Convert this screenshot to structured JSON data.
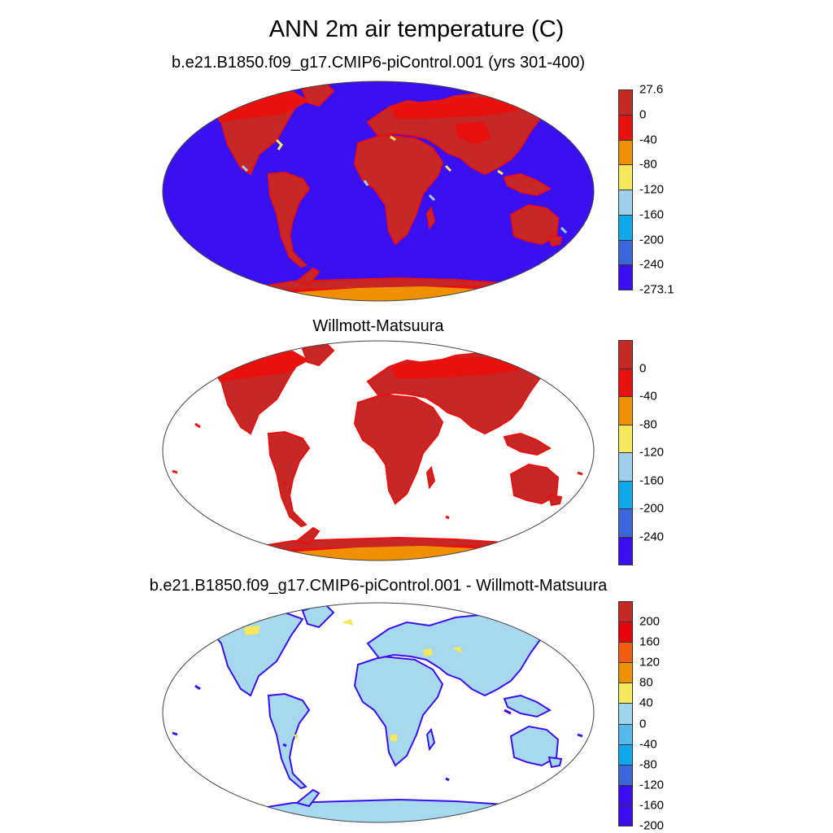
{
  "title": "ANN 2m air temperature (C)",
  "panels": [
    {
      "title": "b.e21.B1850.f09_g17.CMIP6-piControl.001 (yrs 301-400)",
      "colorbar": {
        "colors": [
          "#c62828",
          "#e8110e",
          "#f09000",
          "#f7e85a",
          "#9fcfea",
          "#10a8ec",
          "#3a66df",
          "#3b10f0"
        ],
        "labels": [
          "27.6",
          "0",
          "-40",
          "-80",
          "-120",
          "-160",
          "-200",
          "-240",
          "-273.1"
        ]
      }
    },
    {
      "title": "Willmott-Matsuura",
      "colorbar": {
        "colors": [
          "#c62828",
          "#e8110e",
          "#f09000",
          "#f7e85a",
          "#9fcfea",
          "#10a8ec",
          "#3a66df",
          "#3b10f0"
        ],
        "labels": [
          "0",
          "-40",
          "-80",
          "-120",
          "-160",
          "-200",
          "-240"
        ]
      }
    },
    {
      "title": "b.e21.B1850.f09_g17.CMIP6-piControl.001 - Willmott-Matsuura",
      "colorbar": {
        "colors": [
          "#c62828",
          "#e8000b",
          "#f25c0e",
          "#f09000",
          "#f7e85a",
          "#9fd6ef",
          "#57b8f0",
          "#10a8ec",
          "#3a66df",
          "#3b10f0",
          "#3b10f0"
        ],
        "labels": [
          "200",
          "160",
          "120",
          "80",
          "40",
          "0",
          "-40",
          "-80",
          "-120",
          "-160",
          "-200"
        ]
      }
    }
  ],
  "colors": {
    "ocean_model": "#3b10f0",
    "land_warm": "#c62828",
    "land_cold": "#e8110e",
    "antarctic_interior": "#f09000",
    "difference_land": "#a6d8ee",
    "difference_positive": "#f7e85a",
    "coastline": "#000000"
  }
}
